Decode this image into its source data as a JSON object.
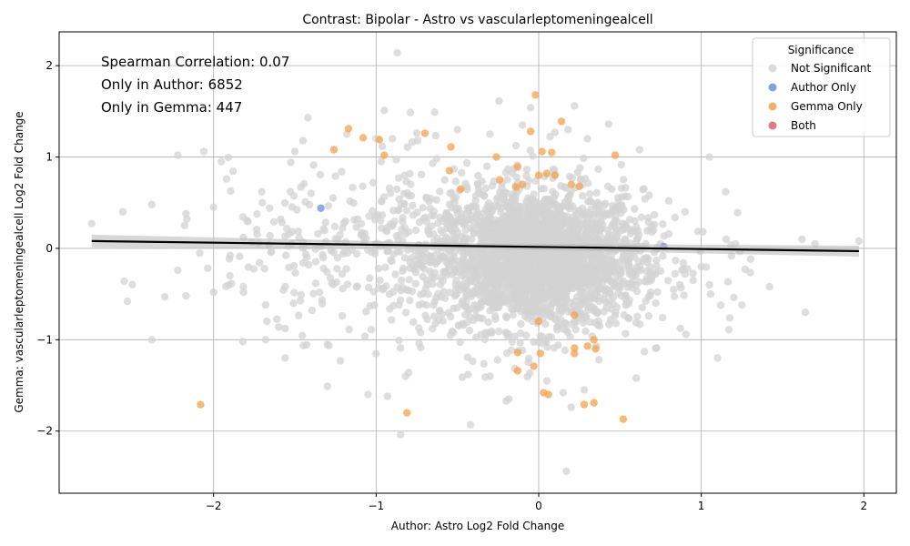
{
  "chart_data": {
    "type": "scatter",
    "title": "Contrast: Bipolar - Astro vs vascularleptomeningealcell",
    "xlabel": "Author: Astro Log2 Fold Change",
    "ylabel": "Gemma: vascularleptomeningealcell Log2 Fold Change",
    "xlim": [
      -2.95,
      2.2
    ],
    "ylim": [
      -2.68,
      2.37
    ],
    "xticks": [
      -2,
      -1,
      0,
      1,
      2
    ],
    "yticks": [
      -2,
      -1,
      0,
      1,
      2
    ],
    "grid": true,
    "legend_placement": "top-right",
    "legend_title": "Significance",
    "annotations": [
      "Spearman Correlation: 0.07",
      "Only in Author: 6852",
      "Only in Gemma: 447"
    ],
    "regression_line": {
      "x": [
        -2.75,
        1.97
      ],
      "y": [
        0.08,
        -0.03
      ]
    },
    "series": [
      {
        "name": "Not Significant",
        "color": "#d3d3d3",
        "cluster": {
          "center": [
            0.0,
            -0.12
          ],
          "spread": [
            0.32,
            0.38
          ],
          "count": 2200
        },
        "outliers": [
          [
            -2.75,
            0.27
          ],
          [
            -2.55,
            -0.36
          ],
          [
            -2.53,
            -0.58
          ],
          [
            -2.38,
            0.48
          ],
          [
            -2.38,
            -1.0
          ],
          [
            -2.3,
            -0.53
          ],
          [
            -2.22,
            1.02
          ],
          [
            -2.22,
            -0.24
          ],
          [
            -2.17,
            0.38
          ],
          [
            -2.17,
            -0.52
          ],
          [
            -2.06,
            1.06
          ],
          [
            -2.0,
            0.45
          ],
          [
            -2.0,
            -0.48
          ],
          [
            -1.92,
            0.76
          ],
          [
            -1.9,
            -0.3
          ],
          [
            -1.82,
            -1.02
          ],
          [
            -1.7,
            0.5
          ],
          [
            -1.68,
            -1.0
          ],
          [
            -1.6,
            -0.86
          ],
          [
            -1.56,
            -1.2
          ],
          [
            -1.5,
            1.06
          ],
          [
            -1.45,
            1.18
          ],
          [
            -1.42,
            1.43
          ],
          [
            -1.3,
            -1.05
          ],
          [
            -1.3,
            -1.51
          ],
          [
            -1.22,
            -1.23
          ],
          [
            -1.18,
            1.25
          ],
          [
            -1.05,
            -1.6
          ],
          [
            -0.95,
            1.51
          ],
          [
            -0.93,
            -1.62
          ],
          [
            -0.87,
            2.14
          ],
          [
            -0.85,
            -1.09
          ],
          [
            -0.8,
            -1.36
          ],
          [
            -0.82,
            -1.4
          ],
          [
            -0.85,
            -2.04
          ],
          [
            -0.75,
            1.26
          ],
          [
            -0.64,
            1.49
          ],
          [
            -0.47,
            -1.41
          ],
          [
            -0.42,
            -1.93
          ],
          [
            -0.3,
            -1.4
          ],
          [
            -0.2,
            -1.67
          ],
          [
            -0.1,
            1.35
          ],
          [
            -0.05,
            1.54
          ],
          [
            0.05,
            -1.45
          ],
          [
            0.1,
            1.27
          ],
          [
            0.15,
            -1.58
          ],
          [
            0.18,
            1.3
          ],
          [
            0.22,
            1.56
          ],
          [
            0.2,
            -1.74
          ],
          [
            0.28,
            -1.55
          ],
          [
            0.37,
            -1.22
          ],
          [
            0.43,
            1.36
          ],
          [
            0.6,
            -1.42
          ],
          [
            0.62,
            1.08
          ],
          [
            0.65,
            -1.13
          ],
          [
            0.72,
            -0.6
          ],
          [
            0.8,
            0.52
          ],
          [
            0.83,
            -0.45
          ],
          [
            0.9,
            0.4
          ],
          [
            0.95,
            -0.35
          ],
          [
            1.0,
            -0.2
          ],
          [
            1.05,
            1.0
          ],
          [
            1.05,
            -0.4
          ],
          [
            1.1,
            -1.2
          ],
          [
            1.15,
            0.62
          ],
          [
            1.17,
            -0.89
          ],
          [
            1.21,
            0.05
          ],
          [
            1.25,
            -0.62
          ],
          [
            1.27,
            -0.23
          ],
          [
            1.42,
            -0.42
          ],
          [
            1.62,
            0.1
          ],
          [
            1.64,
            -0.7
          ],
          [
            1.7,
            0.05
          ],
          [
            1.97,
            0.08
          ],
          [
            0.17,
            -2.44
          ],
          [
            -0.5,
            1.3
          ],
          [
            -0.3,
            1.25
          ],
          [
            0.3,
            1.2
          ],
          [
            -0.9,
            1.2
          ],
          [
            -1.0,
            1.2
          ]
        ]
      },
      {
        "name": "Author Only",
        "color": "#6f8fda",
        "points": [
          [
            -1.34,
            0.44
          ],
          [
            0.77,
            0.02
          ]
        ]
      },
      {
        "name": "Gemma Only",
        "color": "#f5a24b",
        "points": [
          [
            -0.02,
            1.68
          ],
          [
            0.14,
            1.39
          ],
          [
            -0.05,
            1.28
          ],
          [
            -1.17,
            1.31
          ],
          [
            -1.08,
            1.21
          ],
          [
            -0.98,
            1.19
          ],
          [
            -0.7,
            1.26
          ],
          [
            -1.26,
            1.08
          ],
          [
            -0.95,
            1.02
          ],
          [
            -0.54,
            1.11
          ],
          [
            0.08,
            1.05
          ],
          [
            0.47,
            1.02
          ],
          [
            0.02,
            1.06
          ],
          [
            -0.26,
            1.0
          ],
          [
            -0.13,
            0.89
          ],
          [
            -0.55,
            0.85
          ],
          [
            -0.24,
            0.75
          ],
          [
            -0.48,
            0.65
          ],
          [
            -0.1,
            0.7
          ],
          [
            0.0,
            0.8
          ],
          [
            0.05,
            0.82
          ],
          [
            0.1,
            0.8
          ],
          [
            0.2,
            0.7
          ],
          [
            0.25,
            0.68
          ],
          [
            -0.14,
            0.67
          ],
          [
            -0.13,
            -1.14
          ],
          [
            -0.13,
            -1.34
          ],
          [
            -0.03,
            -1.29
          ],
          [
            0.01,
            -1.15
          ],
          [
            0.03,
            -1.58
          ],
          [
            0.06,
            -1.6
          ],
          [
            0.22,
            -1.09
          ],
          [
            0.22,
            -1.15
          ],
          [
            0.3,
            -1.07
          ],
          [
            0.34,
            -1.0
          ],
          [
            0.35,
            -1.1
          ],
          [
            0.28,
            -1.71
          ],
          [
            0.34,
            -1.69
          ],
          [
            0.52,
            -1.87
          ],
          [
            -2.08,
            -1.71
          ],
          [
            -0.81,
            -1.8
          ],
          [
            0.0,
            -0.8
          ],
          [
            0.22,
            -0.73
          ]
        ]
      },
      {
        "name": "Both",
        "color": "#dd5f73",
        "points": []
      }
    ]
  }
}
